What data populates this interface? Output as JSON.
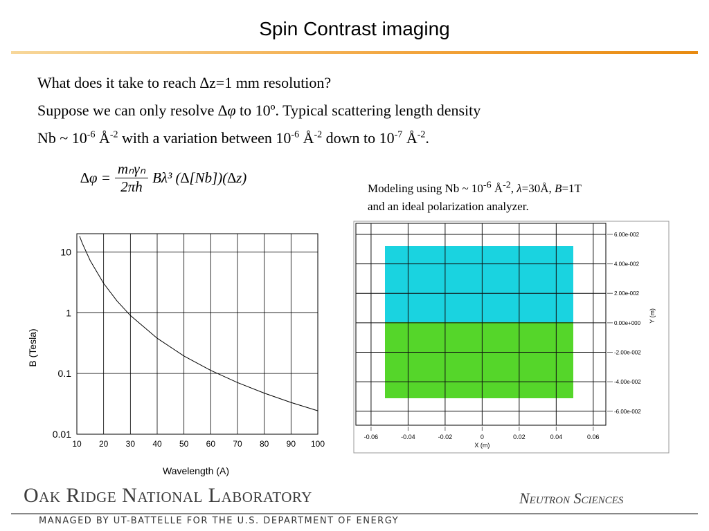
{
  "header": {
    "title": "Spin Contrast imaging"
  },
  "body": {
    "lines": [
      [
        {
          "text": "What does it take to reach ∆z=1 mm resolution?"
        }
      ],
      [
        {
          "text": "Suppose we can only resolve "
        },
        {
          "italic": "∆φ"
        },
        {
          "text": " to 10º. Typical scattering length density"
        }
      ],
      [
        {
          "text": "Nb ~ 10"
        },
        {
          "sup": "-6"
        },
        {
          "text": " Å"
        },
        {
          "sup": "-2"
        },
        {
          "text": " with a variation between 10"
        },
        {
          "sup": "-6"
        },
        {
          "text": " Å"
        },
        {
          "sup": "-2"
        },
        {
          "text": " down to 10"
        },
        {
          "sup": "-7"
        },
        {
          "text": " Å"
        },
        {
          "sup": "-2"
        },
        {
          "text": "."
        }
      ]
    ]
  },
  "formula": {
    "lhs": "∆φ =",
    "numerator": "mₙγₙ",
    "denominator": "2πh",
    "rhs": "Bλ³ (∆[Nb])(∆z)"
  },
  "caption": {
    "lines": [
      [
        {
          "text": "Modeling using Nb ~ 10"
        },
        {
          "sup": "-6"
        },
        {
          "text": " Å"
        },
        {
          "sup": "-2"
        },
        {
          "text": ", "
        },
        {
          "italic": "λ"
        },
        {
          "text": "=30Å, "
        },
        {
          "italic": "B"
        },
        {
          "text": "=1T"
        }
      ],
      [
        {
          "text": "and an ideal polarization analyzer."
        }
      ]
    ]
  },
  "chart_data": {
    "type": "line",
    "x_label": "Wavelength (A)",
    "y_label": "B (Tesla)",
    "x": [
      11,
      12,
      15,
      20,
      25,
      30,
      40,
      50,
      60,
      70,
      80,
      90,
      100
    ],
    "values": [
      18.26,
      14.06,
      7.2,
      3.04,
      1.56,
      0.9,
      0.38,
      0.194,
      0.1125,
      0.0708,
      0.0475,
      0.0333,
      0.0243
    ],
    "color": "#000000",
    "log_y": true,
    "grid": true,
    "xlim": [
      10,
      100
    ],
    "xticks": [
      10,
      20,
      30,
      40,
      50,
      60,
      70,
      80,
      90,
      100
    ],
    "ylim": [
      0.01,
      20
    ],
    "yticks": [
      0.01,
      0.1,
      1,
      10
    ]
  },
  "map": {
    "x_label": "X (m)",
    "y_label": "Y (m)",
    "xlim": [
      -0.0682,
      0.0668
    ],
    "ylim": [
      -0.0695,
      0.0675
    ],
    "xticks": [
      -0.06,
      -0.04,
      -0.02,
      0,
      0.02,
      0.04,
      0.06
    ],
    "yticks": [
      {
        "value": 0.06,
        "label": "6.00e-002"
      },
      {
        "value": 0.04,
        "label": "4.00e-002"
      },
      {
        "value": 0.02,
        "label": "2.00e-002"
      },
      {
        "value": 0,
        "label": "0.00e+000"
      },
      {
        "value": -0.02,
        "label": "-2.00e-002"
      },
      {
        "value": -0.04,
        "label": "-4.00e-002"
      },
      {
        "value": -0.06,
        "label": "-6.00e-002"
      }
    ]
  },
  "footer": {
    "lab": "Oak Ridge National Laboratory",
    "division": "Neutron Sciences",
    "managed": "MANAGED BY UT-BATTELLE FOR THE U.S. DEPARTMENT OF ENERGY"
  }
}
